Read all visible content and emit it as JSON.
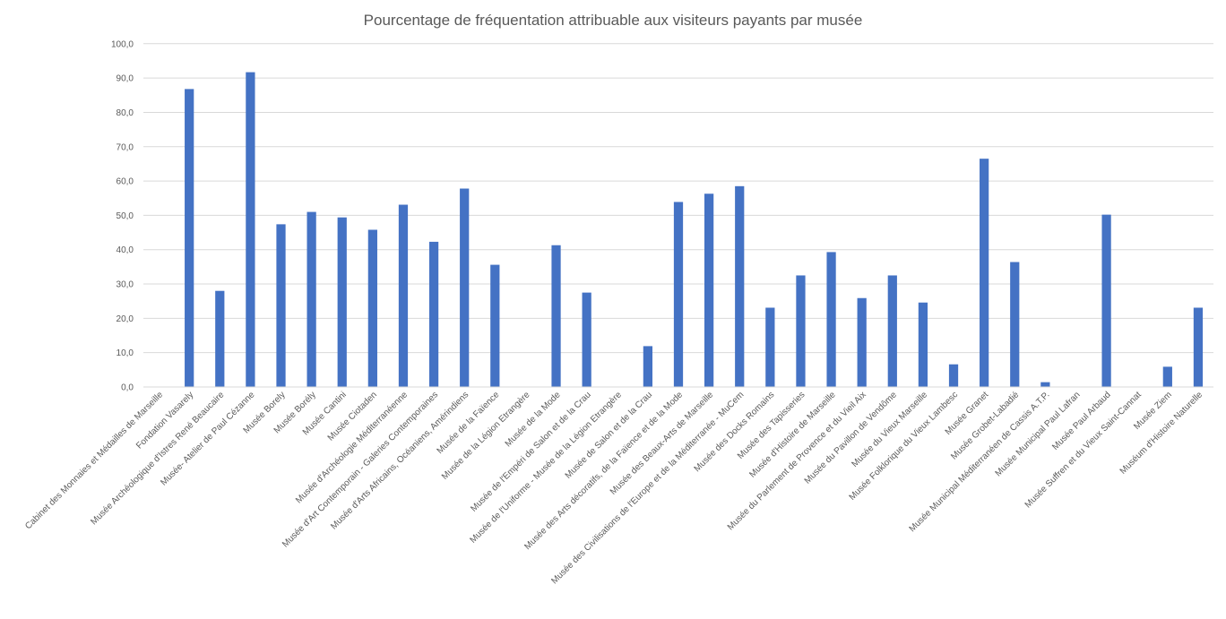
{
  "chart_data": {
    "type": "bar",
    "title": "Pourcentage de fréquentation attribuable aux visiteurs payants par musée",
    "xlabel": "",
    "ylabel": "",
    "ylim": [
      0,
      100
    ],
    "yticks": [
      "0,0",
      "10,0",
      "20,0",
      "30,0",
      "40,0",
      "50,0",
      "60,0",
      "70,0",
      "80,0",
      "90,0",
      "100,0"
    ],
    "grid": true,
    "legend": "none",
    "bar_color": "#4472c4",
    "categories": [
      "Cabinet des Monnaies et Médailles de Marseille",
      "Fondation Vasarely",
      "Musée Archéologique d'Istres René Beaucaire",
      "Musée- Atelier de Paul Cézanne",
      "Musée Borely",
      "Musée Borély",
      "Musée Cantini",
      "Musée Ciotaden",
      "Musée d'Archéologie Méditerranéenne",
      "Musée d'Art Contemporain - Galeries Contemporaines",
      "Musée d'Arts Africains, Océaniens, Amérindiens",
      "Musée de la Faïence",
      "Musée de la Légion Etrangère",
      "Musée de la Mode",
      "Musée de l'Empéri de Salon et de la Crau",
      "Musée de l'Uniforme - Musée de la Légion Etrangère",
      "Musée de Salon et de la Crau",
      "Musée des Arts décoratifs, de la Faïence et de la Mode",
      "Musée des Beaux-Arts de Marseille",
      "Musée des Civilisations de l'Europe et de la Méditerranée - MuCem",
      "Musée des Docks Romains",
      "Musée des Tapisseries",
      "Musée d'Histoire de Marseille",
      "Musée du Parlement de Provence et du Vieil Aix",
      "Musée du Pavillon de Vendôme",
      "Musée du Vieux Marseille",
      "Musée Folklorique du Vieux Lambesc",
      "Musée Granet",
      "Musée Grobet-Labadié",
      "Musée Municipal Méditerranéen de Cassis A.T.P.",
      "Musée Municipal Paul Lafran",
      "Musée Paul Arbaud",
      "Musée Suffren et du Vieux Saint-Cannat",
      "Musée Ziem",
      "Muséum d'Histoire Naturelle"
    ],
    "values": [
      0,
      86.8,
      28.0,
      91.7,
      47.4,
      51.0,
      49.4,
      45.8,
      53.1,
      42.3,
      57.8,
      35.6,
      0,
      41.3,
      27.5,
      0,
      11.9,
      53.9,
      56.3,
      58.5,
      23.1,
      32.5,
      39.3,
      25.9,
      32.5,
      24.6,
      6.6,
      66.5,
      36.4,
      1.4,
      0,
      50.2,
      0,
      5.9,
      23.1
    ]
  }
}
